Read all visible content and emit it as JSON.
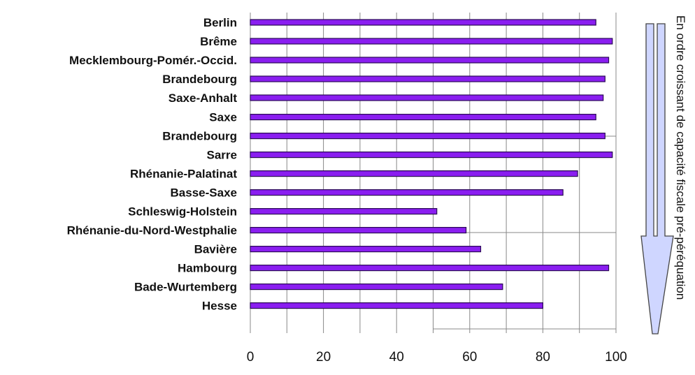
{
  "chart_data": {
    "type": "bar",
    "orientation": "horizontal",
    "categories": [
      "Berlin",
      "Brême",
      "Mecklembourg-Pomér.-Occid.",
      "Brandebourg",
      "Saxe-Anhalt",
      "Saxe",
      "Brandebourg",
      "Sarre",
      "Rhénanie-Palatinat",
      "Basse-Saxe",
      "Schleswig-Holstein",
      "Rhénanie-du-Nord-Westphalie",
      "Bavière",
      "Hambourg",
      "Bade-Wurtemberg",
      "Hesse"
    ],
    "values": [
      94.5,
      99,
      98,
      97,
      96.5,
      94.5,
      97,
      99,
      89.5,
      85.5,
      51,
      59,
      63,
      98,
      69,
      80
    ],
    "xlim": [
      0,
      100
    ],
    "xticks": [
      "0",
      "20",
      "40",
      "60",
      "80",
      "100"
    ],
    "title": "",
    "xlabel": "",
    "ylabel": "",
    "grid": "vertical",
    "colors": {
      "bar": "#8a1ef0",
      "bar_edge": "#2a0a55",
      "grid": "#888888",
      "arrow_fill": "#cfd6ff",
      "arrow_edge": "#444444"
    },
    "annotation": "En ordre croissant de capacité fiscale pré-péréquation"
  }
}
